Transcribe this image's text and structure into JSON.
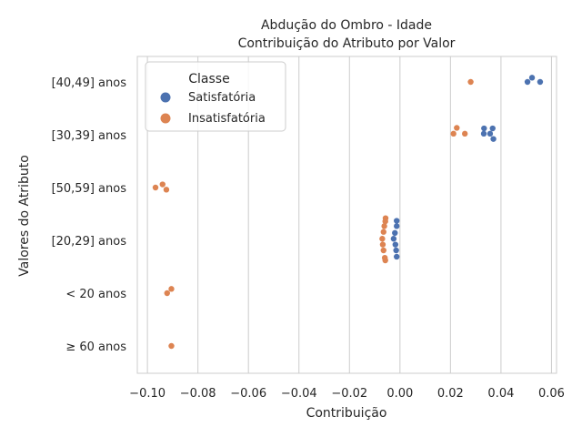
{
  "chart_data": {
    "type": "scatter",
    "title_line1": "Abdução do Ombro - Idade",
    "title_line2": "Contribuição do Atributo por Valor",
    "xlabel": "Contribuição",
    "ylabel": "Valores do Atributo",
    "xlim": [
      -0.104,
      0.062
    ],
    "xticks": [
      -0.1,
      -0.08,
      -0.06,
      -0.04,
      -0.02,
      0.0,
      0.02,
      0.04,
      0.06
    ],
    "xtick_labels": [
      "−0.10",
      "−0.08",
      "−0.06",
      "−0.04",
      "−0.02",
      "0.00",
      "0.02",
      "0.04",
      "0.06"
    ],
    "categories": [
      "[40,49] anos",
      "[30,39] anos",
      "[50,59] anos",
      "[20,29] anos",
      "< 20 anos",
      "≥ 60 anos"
    ],
    "grid": "vertical",
    "legend": {
      "title": "Classe",
      "placement": "upper-left",
      "entries": [
        {
          "label": "Satisfatória",
          "color": "#4c72b0"
        },
        {
          "label": "Insatisfatória",
          "color": "#dd8452"
        }
      ]
    },
    "series": [
      {
        "name": "Satisfatória",
        "color": "#4c72b0",
        "points": [
          {
            "category": "[40,49] anos",
            "x": 0.0523,
            "jitter": -0.08
          },
          {
            "category": "[40,49] anos",
            "x": 0.0505,
            "jitter": 0.0
          },
          {
            "category": "[40,49] anos",
            "x": 0.0555,
            "jitter": 0.0
          },
          {
            "category": "[30,39] anos",
            "x": 0.0333,
            "jitter": -0.12
          },
          {
            "category": "[30,39] anos",
            "x": 0.0367,
            "jitter": -0.12
          },
          {
            "category": "[30,39] anos",
            "x": 0.0332,
            "jitter": -0.02
          },
          {
            "category": "[30,39] anos",
            "x": 0.0357,
            "jitter": -0.02
          },
          {
            "category": "[30,39] anos",
            "x": 0.037,
            "jitter": 0.08
          },
          {
            "category": "[20,29] anos",
            "x": -0.0013,
            "jitter": -0.37
          },
          {
            "category": "[20,29] anos",
            "x": -0.0013,
            "jitter": -0.27
          },
          {
            "category": "[20,29] anos",
            "x": -0.002,
            "jitter": -0.14
          },
          {
            "category": "[20,29] anos",
            "x": -0.0025,
            "jitter": -0.03
          },
          {
            "category": "[20,29] anos",
            "x": -0.0018,
            "jitter": 0.08
          },
          {
            "category": "[20,29] anos",
            "x": -0.0015,
            "jitter": 0.19
          },
          {
            "category": "[20,29] anos",
            "x": -0.0013,
            "jitter": 0.31
          }
        ]
      },
      {
        "name": "Insatisfatória",
        "color": "#dd8452",
        "points": [
          {
            "category": "[40,49] anos",
            "x": 0.028,
            "jitter": 0.0
          },
          {
            "category": "[30,39] anos",
            "x": 0.0225,
            "jitter": -0.13
          },
          {
            "category": "[30,39] anos",
            "x": 0.0212,
            "jitter": -0.02
          },
          {
            "category": "[30,39] anos",
            "x": 0.0257,
            "jitter": -0.02
          },
          {
            "category": "[50,59] anos",
            "x": -0.094,
            "jitter": -0.06
          },
          {
            "category": "[50,59] anos",
            "x": -0.0968,
            "jitter": 0.0
          },
          {
            "category": "[50,59] anos",
            "x": -0.0925,
            "jitter": 0.04
          },
          {
            "category": "[20,29] anos",
            "x": -0.0057,
            "jitter": -0.42
          },
          {
            "category": "[20,29] anos",
            "x": -0.0058,
            "jitter": -0.36
          },
          {
            "category": "[20,29] anos",
            "x": -0.0062,
            "jitter": -0.27
          },
          {
            "category": "[20,29] anos",
            "x": -0.0065,
            "jitter": -0.16
          },
          {
            "category": "[20,29] anos",
            "x": -0.007,
            "jitter": -0.03
          },
          {
            "category": "[20,29] anos",
            "x": -0.0068,
            "jitter": 0.08
          },
          {
            "category": "[20,29] anos",
            "x": -0.0065,
            "jitter": 0.19
          },
          {
            "category": "[20,29] anos",
            "x": -0.006,
            "jitter": 0.33
          },
          {
            "category": "[20,29] anos",
            "x": -0.0058,
            "jitter": 0.38
          },
          {
            "category": "< 20 anos",
            "x": -0.0905,
            "jitter": -0.08
          },
          {
            "category": "< 20 anos",
            "x": -0.0922,
            "jitter": 0.0
          },
          {
            "category": "≥ 60 anos",
            "x": -0.0905,
            "jitter": 0.0
          }
        ]
      }
    ]
  }
}
